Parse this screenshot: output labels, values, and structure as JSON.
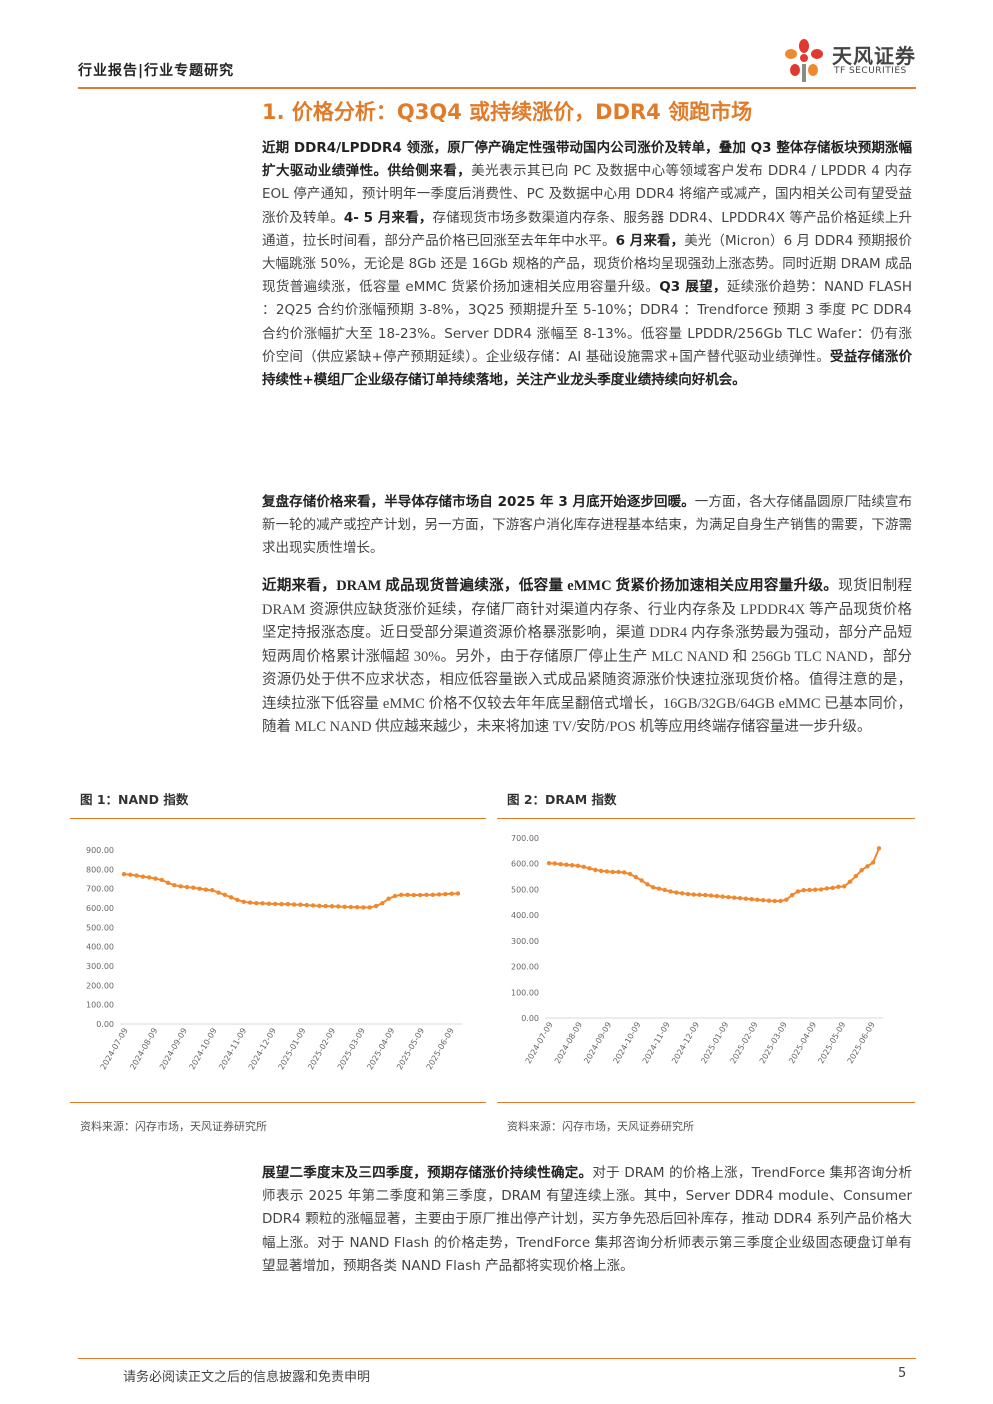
{
  "header": {
    "breadcrumb": "行业报告|行业专题研究",
    "logo_cn": "天风证券",
    "logo_en": "TF SECURITIES"
  },
  "section_title": "1. 价格分析：Q3Q4 或持续涨价，DDR4 领跑市场",
  "para1": {
    "b1": "近期 DDR4/LPDDR4 领涨，原厂停产确定性强带动国内公司涨价及转单，叠加 Q3 整体存储板块预期涨幅扩大驱动业绩弹性。",
    "b2": "供给侧来看，",
    "t1": "美光表示其已向 PC 及数据中心等领域客户发布 DDR4 / LPDDR 4 内存 EOL 停产通知，预计明年一季度后消费性、PC 及数据中心用 DDR4 将缩产或减产，国内相关公司有望受益涨价及转单。",
    "b3": "4- 5 月来看，",
    "t2": "存储现货市场多数渠道内存条、服务器 DDR4、LPDDR4X 等产品价格延续上升通道，拉长时间看，部分产品价格已回涨至去年年中水平。",
    "b4": "6 月来看，",
    "t3": "美光（Micron）6 月 DDR4 预期报价大幅跳涨 50%，无论是 8Gb 还是 16Gb 规格的产品，现货价格均呈现强劲上涨态势。同时近期 DRAM 成品现货普遍续涨，低容量 eMMC 货紧价扬加速相关应用容量升级。",
    "b5": "Q3 展望，",
    "t4": "延续涨价趋势：NAND FLASH ：2Q25 合约价涨幅预期 3-8%，3Q25 预期提升至 5-10%；DDR4 ：Trendforce 预期 3 季度 PC DDR4 合约价涨幅扩大至 18-23%。Server DDR4 涨幅至 8-13%。低容量 LPDDR/256Gb TLC Wafer：仍有涨价空间（供应紧缺+停产预期延续）。企业级存储：AI 基础设施需求+国产替代驱动业绩弹性。",
    "b6": "受益存储涨价持续性+模组厂企业级存储订单持续落地，关注产业龙头季度业绩持续向好机会。"
  },
  "para2": {
    "b1": "复盘存储价格来看，半导体存储市场自 2025 年 3 月底开始逐步回暖。",
    "t1": "一方面，各大存储晶圆原厂陆续宣布新一轮的减产或控产计划，另一方面，下游客户消化库存进程基本结束，为满足自身生产销售的需要，下游需求出现实质性增长。"
  },
  "para3": {
    "b1": "近期来看，DRAM 成品现货普遍续涨，低容量 eMMC 货紧价扬加速相关应用容量升级。",
    "t1": "现货旧制程 DRAM 资源供应缺货涨价延续，存储厂商针对渠道内存条、行业内存条及 LPDDR4X 等产品现货价格坚定持报涨态度。近日受部分渠道资源价格暴涨影响，渠道 DDR4 内存条涨势最为强动，部分产品短短两周价格累计涨幅超 30%。另外，由于存储原厂停止生产 MLC NAND 和 256Gb TLC NAND，部分资源仍处于供不应求状态，相应低容量嵌入式成品紧随资源涨价快速拉涨现货价格。值得注意的是，连续拉涨下低容量 eMMC 价格不仅较去年年底呈翻倍式增长，16GB/32GB/64GB eMMC 已基本同价，随着 MLC NAND 供应越来越少，未来将加速 TV/安防/POS 机等应用终端存储容量进一步升级。"
  },
  "fig1": {
    "title": "图 1：NAND 指数",
    "source": "资料来源：闪存市场，天风证券研究所"
  },
  "fig2": {
    "title": "图 2：DRAM 指数",
    "source": "资料来源：闪存市场，天风证券研究所"
  },
  "chart_data": [
    {
      "type": "line",
      "title": "图 1：NAND 指数",
      "ylim": [
        0,
        900
      ],
      "yticks": [
        "900.00",
        "800.00",
        "700.00",
        "600.00",
        "500.00",
        "400.00",
        "300.00",
        "200.00",
        "100.00",
        "0.00"
      ],
      "xticks": [
        "2024-07-09",
        "2024-08-09",
        "2024-09-09",
        "2024-10-09",
        "2024-11-09",
        "2024-12-09",
        "2025-01-09",
        "2025-02-09",
        "2025-03-09",
        "2025-04-09",
        "2025-05-09",
        "2025-06-09"
      ],
      "color": "#f0892e",
      "series": [
        {
          "values": [
            775,
            772,
            768,
            762,
            758,
            752,
            745,
            730,
            718,
            712,
            708,
            705,
            700,
            695,
            692,
            680,
            668,
            655,
            642,
            632,
            628,
            625,
            624,
            622,
            621,
            620,
            620,
            618,
            617,
            615,
            613,
            611,
            610,
            609,
            608,
            606,
            605,
            604,
            603,
            603,
            610,
            625,
            648,
            662,
            668,
            668,
            667,
            667,
            668,
            668,
            670,
            672,
            674,
            675
          ]
        }
      ]
    },
    {
      "type": "line",
      "title": "图 2：DRAM 指数",
      "ylim": [
        0,
        700
      ],
      "yticks": [
        "700.00",
        "600.00",
        "500.00",
        "400.00",
        "300.00",
        "200.00",
        "100.00",
        "0.00"
      ],
      "xticks": [
        "2024-07-09",
        "2024-08-09",
        "2024-09-09",
        "2024-10-09",
        "2024-11-09",
        "2024-12-09",
        "2025-01-09",
        "2025-02-09",
        "2025-03-09",
        "2025-04-09",
        "2025-05-09",
        "2025-06-09"
      ],
      "color": "#f0892e",
      "series": [
        {
          "values": [
            602,
            601,
            598,
            596,
            594,
            592,
            588,
            582,
            576,
            572,
            570,
            568,
            568,
            566,
            560,
            548,
            535,
            520,
            508,
            503,
            498,
            492,
            488,
            485,
            482,
            480,
            479,
            478,
            476,
            474,
            472,
            470,
            468,
            466,
            464,
            462,
            460,
            458,
            456,
            455,
            455,
            460,
            478,
            492,
            497,
            498,
            499,
            500,
            504,
            506,
            510,
            512,
            530,
            552,
            575,
            590,
            605,
            660
          ]
        }
      ]
    }
  ],
  "para4": {
    "b1": "展望二季度末及三四季度，预期存储涨价持续性确定。",
    "t1": "对于 DRAM 的价格上涨，TrendForce 集邦咨询分析师表示 2025 年第二季度和第三季度，DRAM 有望连续上涨。其中，Server DDR4 module、Consumer DDR4 颗粒的涨幅显著，主要由于原厂推出停产计划，买方争先恐后回补库存，推动 DDR4 系列产品价格大幅上涨。对于 NAND Flash 的价格走势，TrendForce 集邦咨询分析师表示第三季度企业级固态硬盘订单有望显著增加，预期各类 NAND Flash 产品都将实现价格上涨。"
  },
  "footer": {
    "disclaimer": "请务必阅读正文之后的信息披露和免责申明",
    "page": "5"
  }
}
